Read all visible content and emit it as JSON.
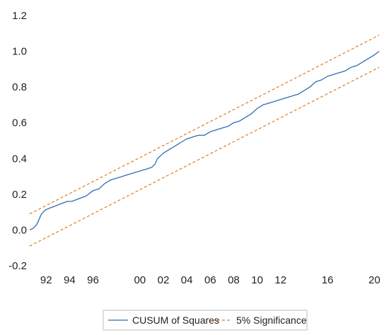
{
  "chart_data": {
    "type": "line",
    "title": "",
    "xlabel": "",
    "ylabel": "",
    "xlim": [
      1990.6,
      2020.4
    ],
    "ylim": [
      -0.2,
      1.2
    ],
    "x_ticks": [
      {
        "value": 1992,
        "label": "92"
      },
      {
        "value": 1994,
        "label": "94"
      },
      {
        "value": 1996,
        "label": "96"
      },
      {
        "value": 2000,
        "label": "00"
      },
      {
        "value": 2002,
        "label": "02"
      },
      {
        "value": 2004,
        "label": "04"
      },
      {
        "value": 2006,
        "label": "06"
      },
      {
        "value": 2008,
        "label": "08"
      },
      {
        "value": 2010,
        "label": "10"
      },
      {
        "value": 2012,
        "label": "12"
      },
      {
        "value": 2016,
        "label": "16"
      },
      {
        "value": 2020,
        "label": "20"
      }
    ],
    "y_ticks": [
      {
        "value": 1.2,
        "label": "1.2"
      },
      {
        "value": 1.0,
        "label": "1.0"
      },
      {
        "value": 0.8,
        "label": "0.8"
      },
      {
        "value": 0.6,
        "label": "0.6"
      },
      {
        "value": 0.4,
        "label": "0.4"
      },
      {
        "value": 0.2,
        "label": "0.2"
      },
      {
        "value": 0.0,
        "label": "0.0"
      },
      {
        "value": -0.2,
        "label": "-0.2"
      }
    ],
    "grid": false,
    "legend_position": "bottom",
    "series": [
      {
        "name": "CUSUM of Squares",
        "color": "#2e6db4",
        "style": "solid",
        "x": [
          1990.6,
          1990.9,
          1991.2,
          1991.4,
          1991.6,
          1991.9,
          1992.2,
          1992.6,
          1993.0,
          1993.4,
          1993.8,
          1994.2,
          1994.6,
          1995.0,
          1995.4,
          1995.8,
          1996.0,
          1996.5,
          1997.0,
          1997.5,
          1998.0,
          1998.5,
          1999.0,
          1999.5,
          2000.0,
          2000.5,
          2001.0,
          2001.3,
          2001.5,
          2002.0,
          2002.5,
          2003.0,
          2003.5,
          2004.0,
          2004.5,
          2005.0,
          2005.5,
          2006.0,
          2006.5,
          2007.0,
          2007.5,
          2008.0,
          2008.5,
          2009.0,
          2009.5,
          2010.0,
          2010.5,
          2011.0,
          2011.5,
          2012.0,
          2012.5,
          2013.0,
          2013.5,
          2014.0,
          2014.5,
          2015.0,
          2015.5,
          2016.0,
          2016.5,
          2017.0,
          2017.5,
          2018.0,
          2018.5,
          2019.0,
          2019.5,
          2020.0,
          2020.4
        ],
        "values": [
          0.0,
          0.01,
          0.03,
          0.06,
          0.09,
          0.11,
          0.12,
          0.13,
          0.14,
          0.15,
          0.16,
          0.16,
          0.17,
          0.18,
          0.19,
          0.21,
          0.22,
          0.23,
          0.26,
          0.28,
          0.29,
          0.3,
          0.31,
          0.32,
          0.33,
          0.34,
          0.35,
          0.37,
          0.4,
          0.43,
          0.45,
          0.47,
          0.49,
          0.51,
          0.52,
          0.53,
          0.53,
          0.55,
          0.56,
          0.57,
          0.58,
          0.6,
          0.61,
          0.63,
          0.65,
          0.68,
          0.7,
          0.71,
          0.72,
          0.73,
          0.74,
          0.75,
          0.76,
          0.78,
          0.8,
          0.83,
          0.84,
          0.86,
          0.87,
          0.88,
          0.89,
          0.91,
          0.92,
          0.94,
          0.96,
          0.98,
          1.0
        ]
      },
      {
        "name": "5% Significance",
        "color": "#e07b20",
        "style": "dashed",
        "x": [
          1990.6,
          2020.4
        ],
        "values": [
          0.09,
          1.09
        ]
      },
      {
        "name": "5% Significance",
        "color": "#e07b20",
        "style": "dashed",
        "x": [
          1990.6,
          2020.4
        ],
        "values": [
          -0.09,
          0.91
        ]
      }
    ],
    "legend": [
      {
        "label": "CUSUM of Squares",
        "color": "#2e6db4",
        "style": "solid"
      },
      {
        "label": "5% Significance",
        "color": "#e07b20",
        "style": "dashed"
      }
    ]
  }
}
